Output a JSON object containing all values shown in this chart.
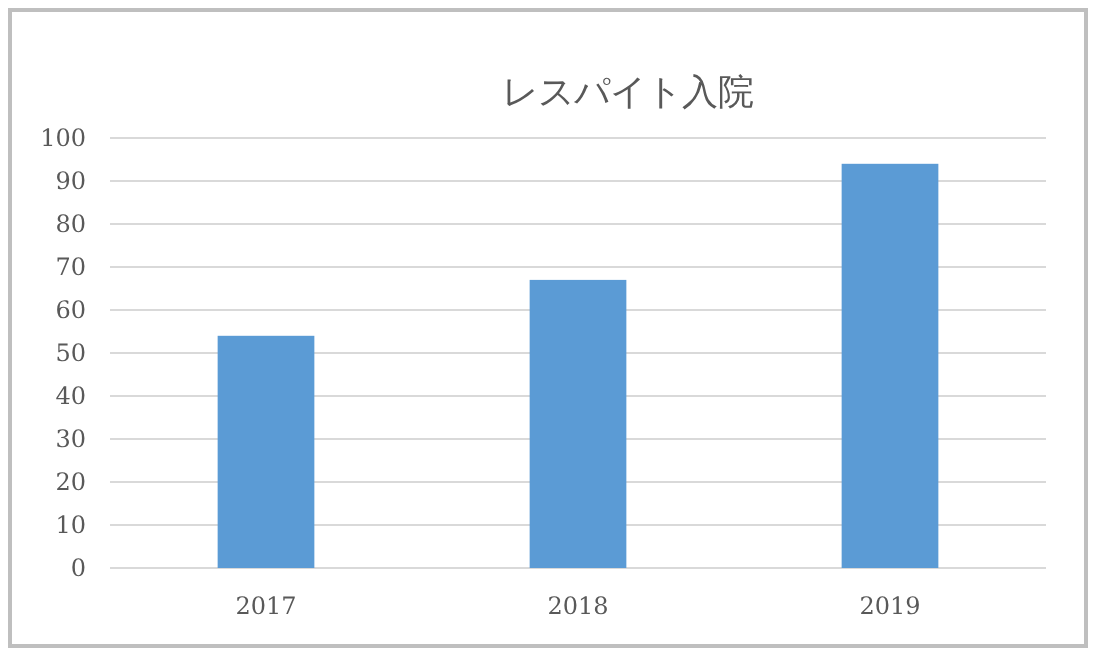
{
  "chart_data": {
    "type": "bar",
    "title": "レスパイト入院",
    "categories": [
      "2017",
      "2018",
      "2019"
    ],
    "values": [
      54,
      67,
      94
    ],
    "color": "#5b9bd5",
    "ylim": [
      0,
      100
    ],
    "yticks": [
      0,
      10,
      20,
      30,
      40,
      50,
      60,
      70,
      80,
      90,
      100
    ],
    "grid": "y"
  }
}
